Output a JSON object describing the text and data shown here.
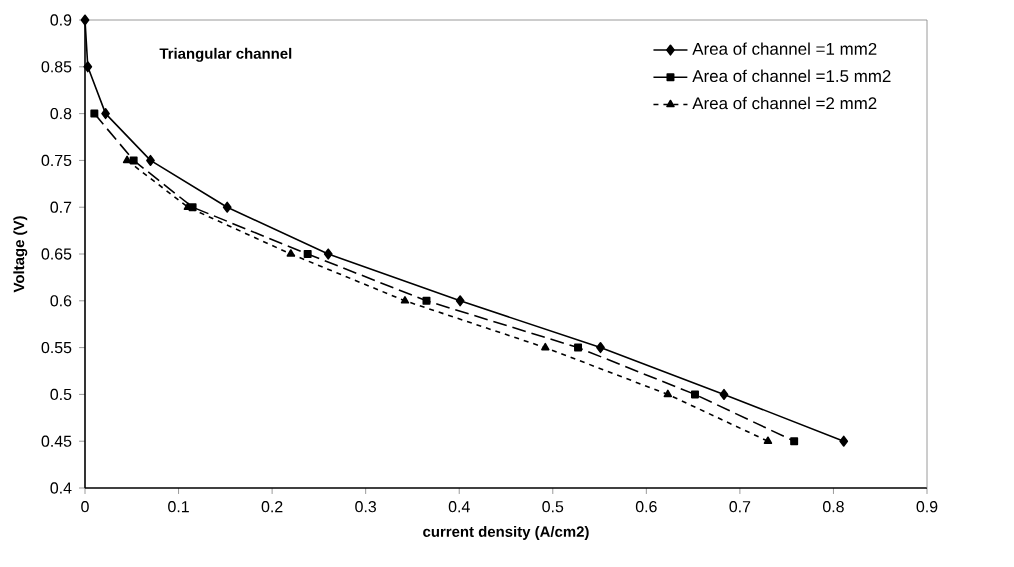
{
  "chart_data": {
    "type": "line",
    "title": "Triangular channel",
    "xlabel": "current density (A/cm2)",
    "ylabel": "Voltage (V)",
    "xlim": [
      0,
      0.9
    ],
    "xticks": [
      0,
      0.1,
      0.2,
      0.3,
      0.4,
      0.5,
      0.6,
      0.7,
      0.8,
      0.9
    ],
    "ylim": [
      0.4,
      0.9
    ],
    "yticks": [
      0.4,
      0.45,
      0.5,
      0.55,
      0.6,
      0.65,
      0.7,
      0.75,
      0.8,
      0.85,
      0.9
    ],
    "grid": false,
    "legend": "top right",
    "series": [
      {
        "name": "Area of channel =1 mm2",
        "color": "#000000",
        "marker": "diamond",
        "line_style": "solid",
        "x": [
          0,
          0.003,
          0.022,
          0.07,
          0.152,
          0.26,
          0.401,
          0.551,
          0.683,
          0.811
        ],
        "values": [
          0.9,
          0.85,
          0.8,
          0.75,
          0.7,
          0.65,
          0.6,
          0.55,
          0.5,
          0.45
        ]
      },
      {
        "name": "Area of channel =1.5 mm2",
        "color": "#000000",
        "marker": "square",
        "line_style": "dashed",
        "x": [
          0.01,
          0.052,
          0.115,
          0.238,
          0.365,
          0.527,
          0.652,
          0.758
        ],
        "values": [
          0.8,
          0.75,
          0.7,
          0.65,
          0.6,
          0.55,
          0.5,
          0.45
        ]
      },
      {
        "name": "Area of channel =2 mm2",
        "color": "#000000",
        "marker": "triangle",
        "line_style": "dotted",
        "x": [
          0.045,
          0.11,
          0.22,
          0.342,
          0.492,
          0.623,
          0.73
        ],
        "values": [
          0.75,
          0.7,
          0.65,
          0.6,
          0.55,
          0.5,
          0.45
        ]
      }
    ]
  }
}
